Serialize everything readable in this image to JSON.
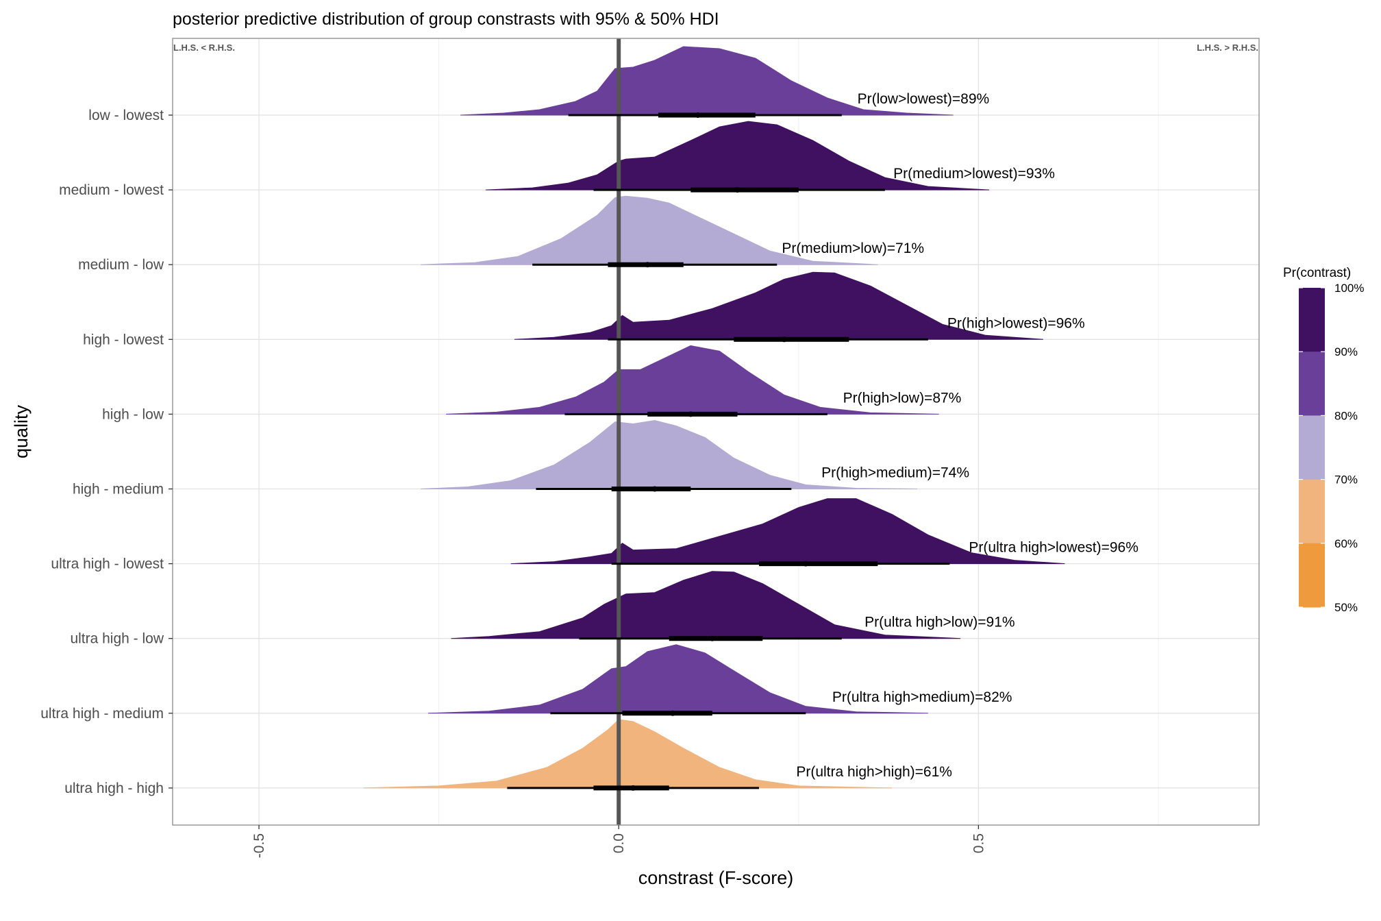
{
  "chart_data": {
    "type": "density-ridge",
    "title": "posterior predictive distribution of group constrasts with 95% & 50% HDI",
    "xlabel": "constrast (F-score)",
    "ylabel": "quality",
    "xlim": [
      -0.62,
      0.89
    ],
    "x_ticks": [
      -0.5,
      0.0,
      0.5
    ],
    "x_tick_labels": [
      "-0.5",
      "0.0",
      "0.5"
    ],
    "grid": true,
    "corner_labels": {
      "left": "L.H.S. < R.H.S.",
      "right": "L.H.S. > R.H.S."
    },
    "reference_line_x": 0,
    "legend": {
      "title": "Pr(contrast)",
      "position": "right",
      "bands": [
        {
          "from": 90,
          "to": 100,
          "color": "#3f1160"
        },
        {
          "from": 80,
          "to": 90,
          "color": "#6a3f99"
        },
        {
          "from": 70,
          "to": 80,
          "color": "#b3abd3"
        },
        {
          "from": 60,
          "to": 70,
          "color": "#f1b47d"
        },
        {
          "from": 50,
          "to": 60,
          "color": "#ee9a3d"
        }
      ],
      "labels": [
        "100%",
        "90%",
        "80%",
        "70%",
        "60%",
        "50%"
      ]
    },
    "rows": [
      {
        "label": "low - lowest",
        "annotation": "Pr(low>lowest)=89%",
        "prob": 89,
        "color": "#6a3f99",
        "density": [
          [
            -0.22,
            0
          ],
          [
            -0.16,
            0.03
          ],
          [
            -0.11,
            0.08
          ],
          [
            -0.06,
            0.2
          ],
          [
            -0.03,
            0.35
          ],
          [
            -0.005,
            0.68
          ],
          [
            0.02,
            0.7
          ],
          [
            0.05,
            0.8
          ],
          [
            0.09,
            1.0
          ],
          [
            0.14,
            0.97
          ],
          [
            0.19,
            0.83
          ],
          [
            0.24,
            0.5
          ],
          [
            0.29,
            0.25
          ],
          [
            0.34,
            0.08
          ],
          [
            0.4,
            0.03
          ],
          [
            0.465,
            0
          ]
        ],
        "hdi95": [
          -0.07,
          0.31
        ],
        "hdi50": [
          0.055,
          0.19
        ],
        "median": 0.11
      },
      {
        "label": "medium - lowest",
        "annotation": "Pr(medium>lowest)=93%",
        "prob": 93,
        "color": "#3f1160",
        "density": [
          [
            -0.185,
            0
          ],
          [
            -0.12,
            0.03
          ],
          [
            -0.07,
            0.1
          ],
          [
            -0.03,
            0.22
          ],
          [
            0,
            0.42
          ],
          [
            0.01,
            0.45
          ],
          [
            0.05,
            0.48
          ],
          [
            0.1,
            0.72
          ],
          [
            0.14,
            0.92
          ],
          [
            0.18,
            1.0
          ],
          [
            0.22,
            0.95
          ],
          [
            0.27,
            0.72
          ],
          [
            0.32,
            0.42
          ],
          [
            0.37,
            0.18
          ],
          [
            0.43,
            0.05
          ],
          [
            0.515,
            0
          ]
        ],
        "hdi95": [
          -0.035,
          0.37
        ],
        "hdi50": [
          0.1,
          0.25
        ],
        "median": 0.165
      },
      {
        "label": "medium - low",
        "annotation": "Pr(medium>low)=71%",
        "prob": 71,
        "color": "#b3abd3",
        "density": [
          [
            -0.275,
            0
          ],
          [
            -0.2,
            0.03
          ],
          [
            -0.14,
            0.12
          ],
          [
            -0.08,
            0.38
          ],
          [
            -0.03,
            0.72
          ],
          [
            -0.005,
            0.98
          ],
          [
            0.01,
            1.0
          ],
          [
            0.04,
            0.97
          ],
          [
            0.07,
            0.9
          ],
          [
            0.11,
            0.7
          ],
          [
            0.16,
            0.45
          ],
          [
            0.21,
            0.2
          ],
          [
            0.27,
            0.05
          ],
          [
            0.36,
            0
          ]
        ],
        "hdi95": [
          -0.12,
          0.22
        ],
        "hdi50": [
          -0.015,
          0.09
        ],
        "median": 0.04
      },
      {
        "label": "high - lowest",
        "annotation": "Pr(high>lowest)=96%",
        "prob": 96,
        "color": "#3f1160",
        "density": [
          [
            -0.145,
            0
          ],
          [
            -0.09,
            0.03
          ],
          [
            -0.04,
            0.1
          ],
          [
            -0.01,
            0.2
          ],
          [
            0.005,
            0.35
          ],
          [
            0.02,
            0.25
          ],
          [
            0.07,
            0.28
          ],
          [
            0.13,
            0.45
          ],
          [
            0.19,
            0.68
          ],
          [
            0.23,
            0.88
          ],
          [
            0.27,
            0.98
          ],
          [
            0.3,
            0.97
          ],
          [
            0.35,
            0.78
          ],
          [
            0.4,
            0.5
          ],
          [
            0.45,
            0.22
          ],
          [
            0.51,
            0.06
          ],
          [
            0.59,
            0
          ]
        ],
        "hdi95": [
          -0.015,
          0.43
        ],
        "hdi50": [
          0.16,
          0.32
        ],
        "median": 0.23
      },
      {
        "label": "high - low",
        "annotation": "Pr(high>low)=87%",
        "prob": 87,
        "color": "#6a3f99",
        "density": [
          [
            -0.24,
            0
          ],
          [
            -0.17,
            0.03
          ],
          [
            -0.11,
            0.1
          ],
          [
            -0.06,
            0.25
          ],
          [
            -0.02,
            0.47
          ],
          [
            0,
            0.65
          ],
          [
            0.03,
            0.65
          ],
          [
            0.06,
            0.8
          ],
          [
            0.1,
            1.0
          ],
          [
            0.14,
            0.92
          ],
          [
            0.18,
            0.62
          ],
          [
            0.23,
            0.28
          ],
          [
            0.28,
            0.1
          ],
          [
            0.35,
            0.02
          ],
          [
            0.445,
            0
          ]
        ],
        "hdi95": [
          -0.075,
          0.29
        ],
        "hdi50": [
          0.04,
          0.165
        ],
        "median": 0.1
      },
      {
        "label": "high - medium",
        "annotation": "Pr(high>medium)=74%",
        "prob": 74,
        "color": "#b3abd3",
        "density": [
          [
            -0.275,
            0
          ],
          [
            -0.21,
            0.03
          ],
          [
            -0.15,
            0.12
          ],
          [
            -0.09,
            0.35
          ],
          [
            -0.04,
            0.68
          ],
          [
            -0.005,
            0.98
          ],
          [
            0.02,
            0.95
          ],
          [
            0.05,
            1.0
          ],
          [
            0.08,
            0.92
          ],
          [
            0.12,
            0.75
          ],
          [
            0.16,
            0.45
          ],
          [
            0.21,
            0.2
          ],
          [
            0.26,
            0.06
          ],
          [
            0.33,
            0.01
          ],
          [
            0.415,
            0
          ]
        ],
        "hdi95": [
          -0.115,
          0.24
        ],
        "hdi50": [
          -0.01,
          0.1
        ],
        "median": 0.05
      },
      {
        "label": "ultra high - lowest",
        "annotation": "Pr(ultra high>lowest)=96%",
        "prob": 96,
        "color": "#3f1160",
        "density": [
          [
            -0.15,
            0
          ],
          [
            -0.09,
            0.03
          ],
          [
            -0.04,
            0.1
          ],
          [
            -0.01,
            0.15
          ],
          [
            0.005,
            0.3
          ],
          [
            0.02,
            0.2
          ],
          [
            0.08,
            0.22
          ],
          [
            0.14,
            0.4
          ],
          [
            0.2,
            0.58
          ],
          [
            0.25,
            0.82
          ],
          [
            0.29,
            0.95
          ],
          [
            0.33,
            0.95
          ],
          [
            0.38,
            0.72
          ],
          [
            0.43,
            0.42
          ],
          [
            0.49,
            0.16
          ],
          [
            0.55,
            0.05
          ],
          [
            0.62,
            0
          ]
        ],
        "hdi95": [
          -0.01,
          0.46
        ],
        "hdi50": [
          0.195,
          0.36
        ],
        "median": 0.26
      },
      {
        "label": "ultra high - low",
        "annotation": "Pr(ultra high>low)=91%",
        "prob": 91,
        "color": "#3f1160",
        "density": [
          [
            -0.233,
            0
          ],
          [
            -0.18,
            0.03
          ],
          [
            -0.11,
            0.1
          ],
          [
            -0.05,
            0.3
          ],
          [
            -0.02,
            0.5
          ],
          [
            0.01,
            0.65
          ],
          [
            0.05,
            0.67
          ],
          [
            0.09,
            0.85
          ],
          [
            0.13,
            0.98
          ],
          [
            0.16,
            0.97
          ],
          [
            0.2,
            0.8
          ],
          [
            0.25,
            0.5
          ],
          [
            0.3,
            0.2
          ],
          [
            0.37,
            0.05
          ],
          [
            0.475,
            0
          ]
        ],
        "hdi95": [
          -0.055,
          0.31
        ],
        "hdi50": [
          0.07,
          0.2
        ],
        "median": 0.13
      },
      {
        "label": "ultra high - medium",
        "annotation": "Pr(ultra high>medium)=82%",
        "prob": 82,
        "color": "#6a3f99",
        "density": [
          [
            -0.265,
            0
          ],
          [
            -0.18,
            0.03
          ],
          [
            -0.11,
            0.12
          ],
          [
            -0.05,
            0.35
          ],
          [
            -0.01,
            0.65
          ],
          [
            0.01,
            0.68
          ],
          [
            0.04,
            0.9
          ],
          [
            0.08,
            1.0
          ],
          [
            0.12,
            0.88
          ],
          [
            0.16,
            0.62
          ],
          [
            0.21,
            0.3
          ],
          [
            0.26,
            0.1
          ],
          [
            0.33,
            0.02
          ],
          [
            0.43,
            0
          ]
        ],
        "hdi95": [
          -0.095,
          0.26
        ],
        "hdi50": [
          0.005,
          0.13
        ],
        "median": 0.075
      },
      {
        "label": "ultra high - high",
        "annotation": "Pr(ultra high>high)=61%",
        "prob": 61,
        "color": "#f1b47d",
        "density": [
          [
            -0.355,
            0
          ],
          [
            -0.25,
            0.03
          ],
          [
            -0.17,
            0.1
          ],
          [
            -0.1,
            0.3
          ],
          [
            -0.05,
            0.58
          ],
          [
            -0.015,
            0.85
          ],
          [
            0,
            1.0
          ],
          [
            0.02,
            0.97
          ],
          [
            0.05,
            0.82
          ],
          [
            0.09,
            0.58
          ],
          [
            0.14,
            0.3
          ],
          [
            0.19,
            0.12
          ],
          [
            0.25,
            0.03
          ],
          [
            0.38,
            0
          ]
        ],
        "hdi95": [
          -0.155,
          0.195
        ],
        "hdi50": [
          -0.035,
          0.07
        ],
        "median": 0.02
      }
    ]
  }
}
